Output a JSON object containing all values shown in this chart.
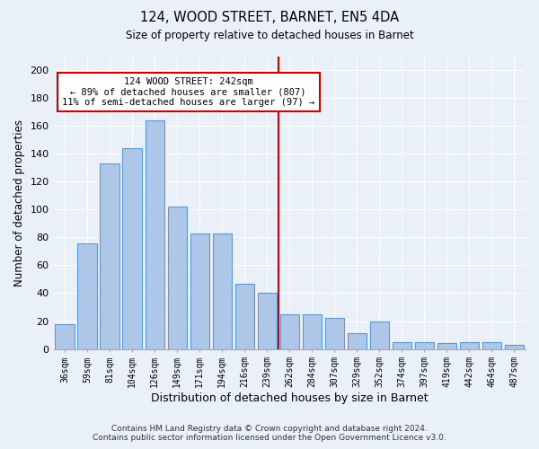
{
  "title": "124, WOOD STREET, BARNET, EN5 4DA",
  "subtitle": "Size of property relative to detached houses in Barnet",
  "xlabel": "Distribution of detached houses by size in Barnet",
  "ylabel": "Number of detached properties",
  "categories": [
    "36sqm",
    "59sqm",
    "81sqm",
    "104sqm",
    "126sqm",
    "149sqm",
    "171sqm",
    "194sqm",
    "216sqm",
    "239sqm",
    "262sqm",
    "284sqm",
    "307sqm",
    "329sqm",
    "352sqm",
    "374sqm",
    "397sqm",
    "419sqm",
    "442sqm",
    "464sqm",
    "487sqm"
  ],
  "values": [
    18,
    76,
    133,
    144,
    164,
    102,
    83,
    83,
    47,
    40,
    25,
    25,
    22,
    11,
    20,
    5,
    5,
    4,
    5,
    5,
    3
  ],
  "bar_color": "#aec6e8",
  "bar_edge_color": "#5a9bd5",
  "background_color": "#eaf0f8",
  "grid_color": "#ffffff",
  "red_line_index": 9,
  "annotation_text": "124 WOOD STREET: 242sqm\n← 89% of detached houses are smaller (807)\n11% of semi-detached houses are larger (97) →",
  "annotation_box_color": "#ffffff",
  "annotation_box_edge": "#cc0000",
  "red_line_color": "#cc0000",
  "ylim": [
    0,
    210
  ],
  "yticks": [
    0,
    20,
    40,
    60,
    80,
    100,
    120,
    140,
    160,
    180,
    200
  ],
  "footer_line1": "Contains HM Land Registry data © Crown copyright and database right 2024.",
  "footer_line2": "Contains public sector information licensed under the Open Government Licence v3.0."
}
